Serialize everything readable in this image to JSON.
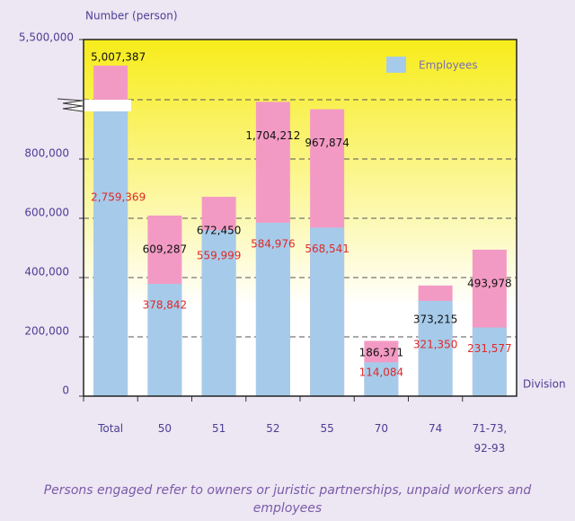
{
  "chart_data": {
    "type": "bar",
    "y_axis_label": "Number (person)",
    "x_axis_label": "Division",
    "categories": [
      "Total",
      "50",
      "51",
      "52",
      "55",
      "70",
      "74",
      "71-73, 92-93"
    ],
    "series": [
      {
        "color": "#f39ac4",
        "values": [
          5007387,
          609287,
          672450,
          1704212,
          967874,
          186371,
          373215,
          493978
        ],
        "value_labels": [
          "5,007,387",
          "609,287",
          "672,450",
          "1,704,212",
          "967,874",
          "186,371",
          "373,215",
          "493,978"
        ]
      },
      {
        "name": "Employees",
        "color": "#a6cbea",
        "values": [
          2759369,
          378842,
          559999,
          584976,
          568541,
          114084,
          321350,
          231577
        ],
        "value_labels": [
          "2,759,369",
          "378,842",
          "559,999",
          "584,976",
          "568,541",
          "114,084",
          "321,350",
          "231,577"
        ]
      }
    ],
    "ylim": [
      0,
      5500000
    ],
    "yticks": [
      0,
      {
        "value": 200000,
        "label": "200,000"
      },
      {
        "value": 400000,
        "label": "400,000"
      },
      {
        "value": 600000,
        "label": "600,000"
      },
      {
        "value": 800000,
        "label": "800,000"
      },
      {
        "value": 5500000,
        "label": "5,500,000"
      }
    ],
    "grid": true,
    "legend": "top-right",
    "note": "Persons engaged refer to owners or juristic partnerships, unpaid workers and employees"
  }
}
